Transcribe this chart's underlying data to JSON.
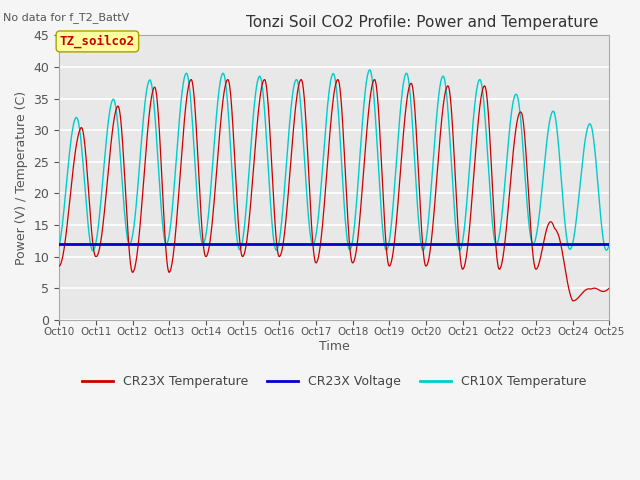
{
  "title": "Tonzi Soil CO2 Profile: Power and Temperature",
  "subtitle": "No data for f_T2_BattV",
  "ylabel": "Power (V) / Temperature (C)",
  "xlabel": "Time",
  "ylim": [
    0,
    45
  ],
  "xlim": [
    0,
    15
  ],
  "blue_line_y": 12.0,
  "legend_label1": "CR23X Temperature",
  "legend_label2": "CR23X Voltage",
  "legend_label3": "CR10X Temperature",
  "legend_color1": "#cc0000",
  "legend_color2": "#0000cc",
  "legend_color3": "#00cccc",
  "box_label": "TZ_soilco2",
  "bg_color": "#e8e8e8",
  "grid_color": "#ffffff",
  "yticks": [
    0,
    5,
    10,
    15,
    20,
    25,
    30,
    35,
    40,
    45
  ],
  "xtick_positions": [
    0,
    1,
    2,
    3,
    4,
    5,
    6,
    7,
    8,
    9,
    10,
    11,
    12,
    13,
    14,
    15
  ],
  "xtick_labels": [
    "Oct 10",
    "Oct 11",
    "Oct 12",
    "Oct 13",
    "Oct 14",
    "Oct 15",
    "Oct 16",
    "Oct 17",
    "Oct 18",
    "Oct 19",
    "Oct 20",
    "Oct 21",
    "Oct 22",
    "Oct 23",
    "Oct 24",
    "Oct 25"
  ]
}
